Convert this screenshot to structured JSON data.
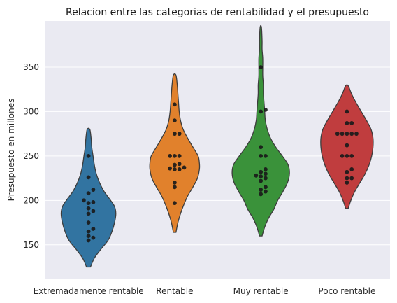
{
  "chart_data": {
    "type": "violin",
    "title": "Relacion entre las categorias de rentabilidad y el presupuesto",
    "xlabel": "",
    "ylabel": "Presupuesto en millones",
    "ylim": [
      112,
      402
    ],
    "yticks": [
      150,
      200,
      250,
      300,
      350
    ],
    "grid": true,
    "colors": {
      "background": "#eaeaf2",
      "grid": "#ffffff",
      "outline": "#3d3d3d",
      "point": "#1a1a1a"
    },
    "categories": [
      {
        "name": "Extremadamente rentable",
        "color": "#3274a1",
        "range": [
          125,
          280
        ],
        "density": [
          [
            125,
            3
          ],
          [
            135,
            9
          ],
          [
            145,
            19
          ],
          [
            155,
            30
          ],
          [
            165,
            36
          ],
          [
            175,
            40
          ],
          [
            185,
            42
          ],
          [
            193,
            40
          ],
          [
            200,
            34
          ],
          [
            210,
            24
          ],
          [
            220,
            17
          ],
          [
            230,
            12
          ],
          [
            240,
            9
          ],
          [
            250,
            7
          ],
          [
            260,
            5
          ],
          [
            270,
            4
          ],
          [
            280,
            2
          ]
        ],
        "points": [
          250,
          226,
          212,
          208,
          200,
          198,
          197,
          191,
          188,
          185,
          175,
          168,
          165,
          160,
          158,
          155
        ]
      },
      {
        "name": "Rentable",
        "color": "#e1812c",
        "range": [
          164,
          341
        ],
        "density": [
          [
            164,
            2
          ],
          [
            175,
            5
          ],
          [
            185,
            9
          ],
          [
            195,
            14
          ],
          [
            205,
            20
          ],
          [
            215,
            28
          ],
          [
            225,
            35
          ],
          [
            235,
            38
          ],
          [
            242,
            38
          ],
          [
            250,
            36
          ],
          [
            260,
            28
          ],
          [
            270,
            20
          ],
          [
            280,
            13
          ],
          [
            290,
            9
          ],
          [
            300,
            7
          ],
          [
            310,
            6
          ],
          [
            320,
            5
          ],
          [
            330,
            4
          ],
          [
            341,
            2
          ]
        ],
        "points": [
          308,
          290,
          275,
          275,
          250,
          250,
          250,
          241,
          240,
          237,
          236,
          235,
          235,
          220,
          215,
          197
        ]
      },
      {
        "name": "Muy rentable",
        "color": "#3a923a",
        "range": [
          160,
          395
        ],
        "density": [
          [
            160,
            2
          ],
          [
            170,
            6
          ],
          [
            180,
            12
          ],
          [
            190,
            20
          ],
          [
            200,
            26
          ],
          [
            210,
            34
          ],
          [
            220,
            41
          ],
          [
            230,
            44
          ],
          [
            240,
            42
          ],
          [
            250,
            33
          ],
          [
            260,
            23
          ],
          [
            270,
            15
          ],
          [
            280,
            10
          ],
          [
            290,
            7
          ],
          [
            300,
            6
          ],
          [
            310,
            5
          ],
          [
            320,
            4
          ],
          [
            330,
            4
          ],
          [
            340,
            3
          ],
          [
            350,
            3
          ],
          [
            360,
            3
          ],
          [
            370,
            2
          ],
          [
            380,
            2
          ],
          [
            395,
            1
          ]
        ],
        "points": [
          350,
          302,
          300,
          260,
          250,
          250,
          235,
          232,
          230,
          228,
          227,
          225,
          222,
          215,
          212,
          210,
          207
        ]
      },
      {
        "name": "Poco rentable",
        "color": "#c03d3e",
        "range": [
          191,
          329
        ],
        "density": [
          [
            191,
            2
          ],
          [
            200,
            6
          ],
          [
            210,
            12
          ],
          [
            220,
            20
          ],
          [
            230,
            28
          ],
          [
            240,
            34
          ],
          [
            250,
            38
          ],
          [
            260,
            40
          ],
          [
            270,
            40
          ],
          [
            280,
            37
          ],
          [
            290,
            30
          ],
          [
            300,
            22
          ],
          [
            310,
            14
          ],
          [
            320,
            7
          ],
          [
            329,
            2
          ]
        ],
        "points": [
          300,
          287,
          287,
          275,
          275,
          275,
          275,
          275,
          262,
          250,
          250,
          250,
          235,
          232,
          225,
          225,
          220
        ]
      }
    ]
  }
}
